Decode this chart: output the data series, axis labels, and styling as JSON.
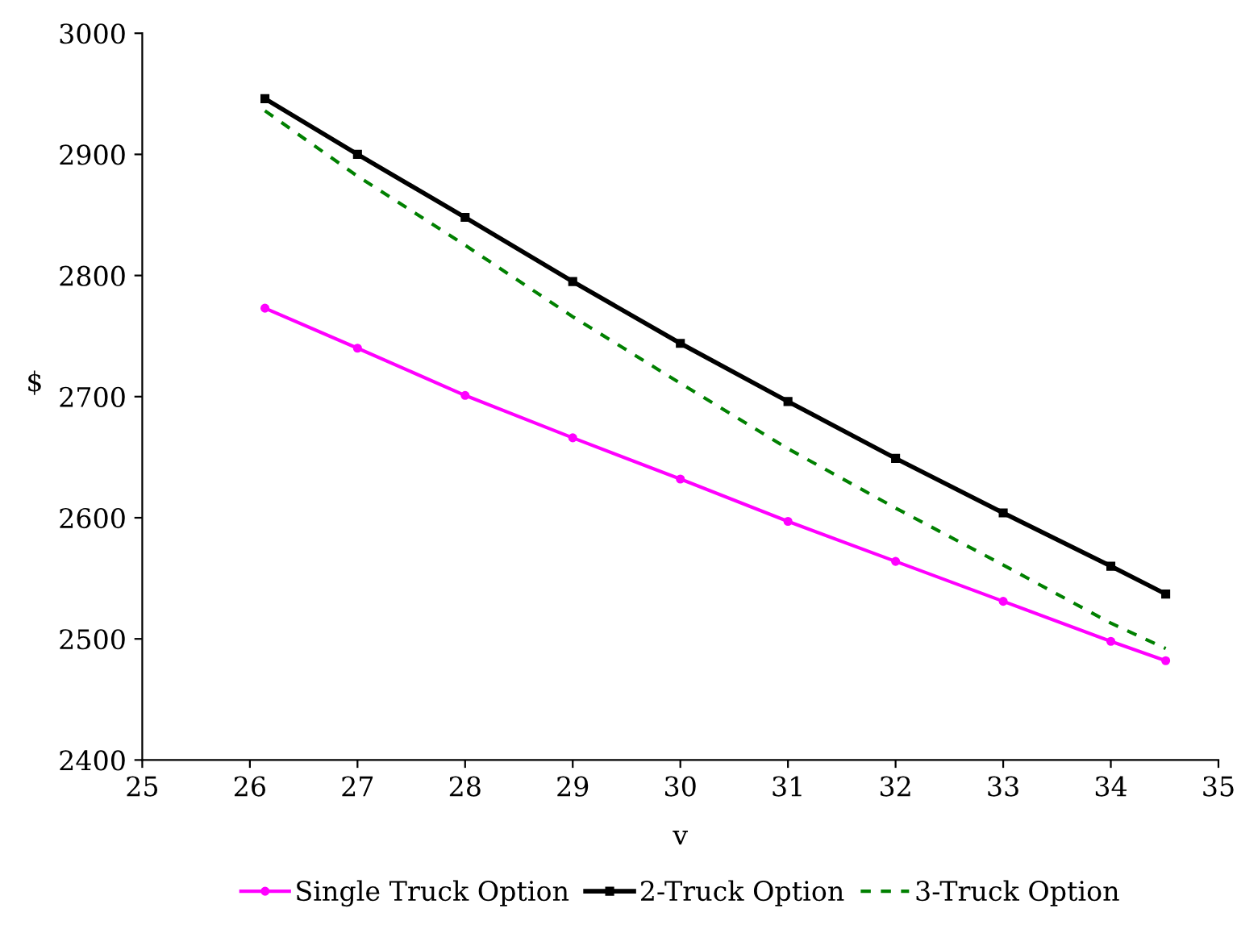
{
  "chart_data": {
    "type": "line",
    "xlabel": "v",
    "ylabel": "$",
    "x": [
      26.14,
      27,
      28,
      29,
      30,
      31,
      32,
      33,
      34,
      34.51
    ],
    "series": [
      {
        "name": "Single Truck Option",
        "color": "#ff00ff",
        "marker": "circle",
        "line_style": "solid",
        "values": [
          2773,
          2740,
          2701,
          2666,
          2632,
          2597,
          2564,
          2531,
          2498,
          2482
        ]
      },
      {
        "name": "2-Truck Option",
        "color": "#000000",
        "marker": "square",
        "line_style": "solid",
        "values": [
          2946,
          2900,
          2848,
          2795,
          2744,
          2696,
          2649,
          2604,
          2560,
          2537
        ]
      },
      {
        "name": "3-Truck Option",
        "color": "#008000",
        "marker": "none",
        "line_style": "dashed",
        "values": [
          2936,
          2882,
          2825,
          2766,
          2711,
          2657,
          2608,
          2561,
          2513,
          2492
        ]
      }
    ],
    "xlim": [
      25,
      35
    ],
    "xticks": [
      25,
      26,
      27,
      28,
      29,
      30,
      31,
      32,
      33,
      34,
      35
    ],
    "ylim": [
      2400,
      3000
    ],
    "yticks": [
      2400,
      2500,
      2600,
      2700,
      2800,
      2900,
      3000
    ],
    "grid": false,
    "legend": "bottom"
  }
}
